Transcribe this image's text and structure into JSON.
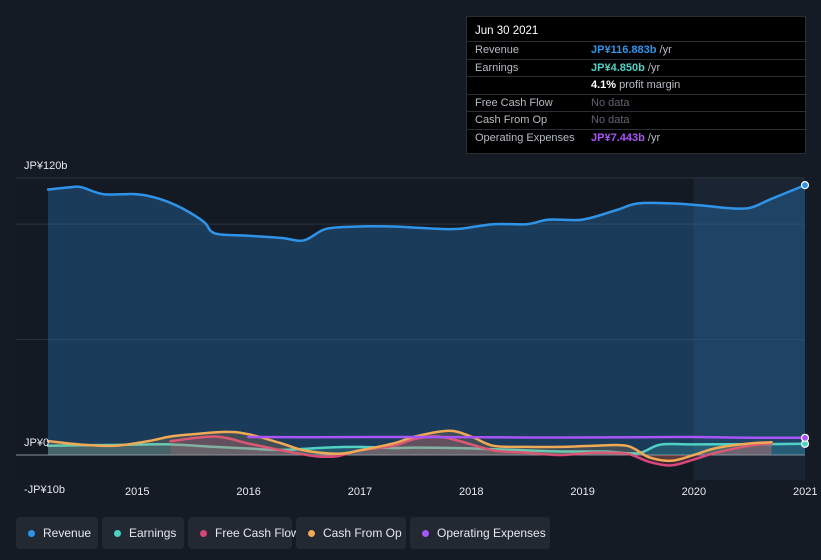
{
  "tooltip": {
    "date": "Jun 30 2021",
    "rows": [
      {
        "label": "Revenue",
        "value": "JP¥116.883b",
        "unit": "/yr",
        "color": "#2f94e8"
      },
      {
        "label": "Earnings",
        "value": "JP¥4.850b",
        "unit": "/yr",
        "color": "#4fd1c5"
      },
      {
        "label": "",
        "value": "4.1%",
        "unit": "profit margin",
        "color": "#ffffff"
      },
      {
        "label": "Free Cash Flow",
        "value": "No data",
        "unit": "",
        "color": "nodata"
      },
      {
        "label": "Cash From Op",
        "value": "No data",
        "unit": "",
        "color": "nodata"
      },
      {
        "label": "Operating Expenses",
        "value": "JP¥7.443b",
        "unit": "/yr",
        "color": "#a855f7"
      }
    ]
  },
  "legend": [
    {
      "label": "Revenue",
      "color": "#2f94e8"
    },
    {
      "label": "Earnings",
      "color": "#4fd1c5"
    },
    {
      "label": "Free Cash Flow",
      "color": "#d6477a"
    },
    {
      "label": "Cash From Op",
      "color": "#f0a955"
    },
    {
      "label": "Operating Expenses",
      "color": "#a855f7"
    }
  ],
  "chart_data": {
    "type": "area",
    "y_tick_labels": [
      "JP¥120b",
      "JP¥0",
      "-JP¥10b"
    ],
    "ylim": [
      -10,
      120
    ],
    "x_tick_labels": [
      "2015",
      "2016",
      "2017",
      "2018",
      "2019",
      "2020",
      "2021"
    ],
    "xlim": [
      2014.7,
      2021.5
    ],
    "highlight_start": 2020.5,
    "grid": true,
    "legend_position": "bottom",
    "series": [
      {
        "name": "Revenue",
        "color": "#2f94e8",
        "fill": true,
        "points": [
          [
            2014.7,
            115
          ],
          [
            2014.9,
            116
          ],
          [
            2015.0,
            116
          ],
          [
            2015.2,
            113
          ],
          [
            2015.5,
            113
          ],
          [
            2015.7,
            111
          ],
          [
            2015.9,
            107
          ],
          [
            2016.1,
            101
          ],
          [
            2016.2,
            96
          ],
          [
            2016.5,
            95
          ],
          [
            2016.8,
            94
          ],
          [
            2017.0,
            93
          ],
          [
            2017.2,
            98
          ],
          [
            2017.5,
            99
          ],
          [
            2017.8,
            99
          ],
          [
            2018.0,
            98.5
          ],
          [
            2018.2,
            98
          ],
          [
            2018.4,
            98
          ],
          [
            2018.7,
            100
          ],
          [
            2019.0,
            100
          ],
          [
            2019.2,
            102
          ],
          [
            2019.5,
            102
          ],
          [
            2019.8,
            106
          ],
          [
            2020.0,
            109
          ],
          [
            2020.3,
            109
          ],
          [
            2020.6,
            108
          ],
          [
            2020.8,
            107
          ],
          [
            2021.0,
            107
          ],
          [
            2021.2,
            111
          ],
          [
            2021.5,
            116.9
          ]
        ]
      },
      {
        "name": "Earnings",
        "color": "#4fd1c5",
        "fill": true,
        "points": [
          [
            2014.7,
            4
          ],
          [
            2015.0,
            4.2
          ],
          [
            2015.5,
            4.5
          ],
          [
            2015.8,
            4.6
          ],
          [
            2016.2,
            3.5
          ],
          [
            2016.5,
            2.8
          ],
          [
            2016.8,
            2.2
          ],
          [
            2017.2,
            3.2
          ],
          [
            2017.5,
            3.5
          ],
          [
            2017.8,
            3
          ],
          [
            2018.0,
            3.2
          ],
          [
            2018.4,
            3
          ],
          [
            2018.7,
            2.5
          ],
          [
            2019.0,
            2
          ],
          [
            2019.3,
            1.5
          ],
          [
            2019.7,
            1.5
          ],
          [
            2020.0,
            0.8
          ],
          [
            2020.2,
            4.5
          ],
          [
            2020.5,
            4.6
          ],
          [
            2021.0,
            4.7
          ],
          [
            2021.5,
            4.85
          ]
        ]
      },
      {
        "name": "Free Cash Flow",
        "color": "#d6477a",
        "fill": true,
        "points": [
          [
            2015.8,
            6
          ],
          [
            2016.2,
            8
          ],
          [
            2016.5,
            5
          ],
          [
            2016.8,
            2
          ],
          [
            2017.1,
            -0.5
          ],
          [
            2017.3,
            -0.5
          ],
          [
            2017.5,
            2
          ],
          [
            2017.8,
            4
          ],
          [
            2018.0,
            7
          ],
          [
            2018.2,
            8
          ],
          [
            2018.4,
            6
          ],
          [
            2018.7,
            2
          ],
          [
            2019.0,
            1
          ],
          [
            2019.3,
            0
          ],
          [
            2019.6,
            1
          ],
          [
            2019.9,
            0.5
          ],
          [
            2020.1,
            -3
          ],
          [
            2020.3,
            -4.5
          ],
          [
            2020.5,
            -2
          ],
          [
            2020.7,
            1
          ],
          [
            2021.0,
            4
          ],
          [
            2021.2,
            5
          ]
        ]
      },
      {
        "name": "Cash From Op",
        "color": "#f0a955",
        "fill": true,
        "points": [
          [
            2014.7,
            6
          ],
          [
            2015.0,
            4.5
          ],
          [
            2015.3,
            4
          ],
          [
            2015.6,
            6
          ],
          [
            2015.8,
            8
          ],
          [
            2016.0,
            9
          ],
          [
            2016.3,
            10
          ],
          [
            2016.5,
            9
          ],
          [
            2016.8,
            5
          ],
          [
            2017.0,
            2
          ],
          [
            2017.3,
            0.5
          ],
          [
            2017.5,
            2
          ],
          [
            2017.8,
            5
          ],
          [
            2018.0,
            8
          ],
          [
            2018.3,
            10.5
          ],
          [
            2018.5,
            8
          ],
          [
            2018.7,
            4
          ],
          [
            2019.0,
            3.5
          ],
          [
            2019.3,
            3.5
          ],
          [
            2019.6,
            4
          ],
          [
            2019.9,
            4
          ],
          [
            2020.1,
            -1
          ],
          [
            2020.3,
            -2.5
          ],
          [
            2020.5,
            0
          ],
          [
            2020.7,
            3
          ],
          [
            2021.0,
            5
          ],
          [
            2021.2,
            5.5
          ]
        ]
      },
      {
        "name": "Operating Expenses",
        "color": "#a855f7",
        "fill": false,
        "points": [
          [
            2016.5,
            7.8
          ],
          [
            2017.0,
            7.7
          ],
          [
            2018.0,
            7.8
          ],
          [
            2019.0,
            7.6
          ],
          [
            2020.0,
            7.7
          ],
          [
            2020.5,
            7.8
          ],
          [
            2021.0,
            7.5
          ],
          [
            2021.5,
            7.44
          ]
        ]
      }
    ]
  }
}
